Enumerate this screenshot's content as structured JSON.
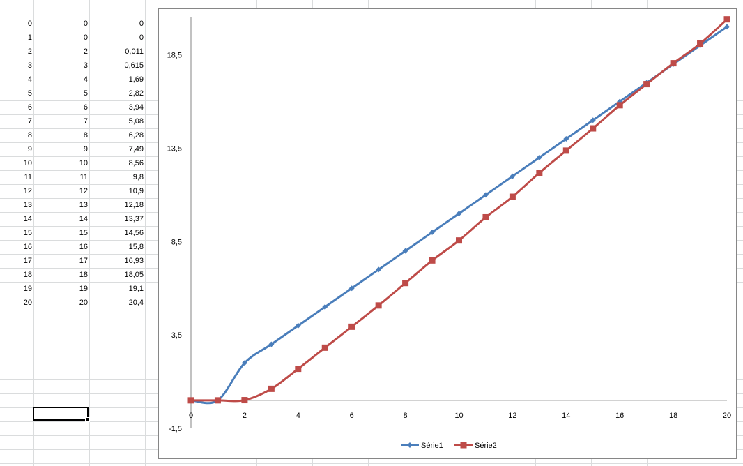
{
  "spreadsheet": {
    "rows": [
      {
        "a": "0",
        "b": "0",
        "c": "0"
      },
      {
        "a": "1",
        "b": "0",
        "c": "0"
      },
      {
        "a": "2",
        "b": "2",
        "c": "0,011"
      },
      {
        "a": "3",
        "b": "3",
        "c": "0,615"
      },
      {
        "a": "4",
        "b": "4",
        "c": "1,69"
      },
      {
        "a": "5",
        "b": "5",
        "c": "2,82"
      },
      {
        "a": "6",
        "b": "6",
        "c": "3,94"
      },
      {
        "a": "7",
        "b": "7",
        "c": "5,08"
      },
      {
        "a": "8",
        "b": "8",
        "c": "6,28"
      },
      {
        "a": "9",
        "b": "9",
        "c": "7,49"
      },
      {
        "a": "10",
        "b": "10",
        "c": "8,56"
      },
      {
        "a": "11",
        "b": "11",
        "c": "9,8"
      },
      {
        "a": "12",
        "b": "12",
        "c": "10,9"
      },
      {
        "a": "13",
        "b": "13",
        "c": "12,18"
      },
      {
        "a": "14",
        "b": "14",
        "c": "13,37"
      },
      {
        "a": "15",
        "b": "15",
        "c": "14,56"
      },
      {
        "a": "16",
        "b": "16",
        "c": "15,8"
      },
      {
        "a": "17",
        "b": "17",
        "c": "16,93"
      },
      {
        "a": "18",
        "b": "18",
        "c": "18,05"
      },
      {
        "a": "19",
        "b": "19",
        "c": "19,1"
      },
      {
        "a": "20",
        "b": "20",
        "c": "20,4"
      }
    ]
  },
  "chart_data": {
    "type": "line",
    "title": "",
    "xlabel": "",
    "ylabel": "",
    "x": [
      0,
      1,
      2,
      3,
      4,
      5,
      6,
      7,
      8,
      9,
      10,
      11,
      12,
      13,
      14,
      15,
      16,
      17,
      18,
      19,
      20
    ],
    "xlim": [
      0,
      20
    ],
    "ylim": [
      -1.5,
      20.5
    ],
    "x_ticks": [
      "0",
      "2",
      "4",
      "6",
      "8",
      "10",
      "12",
      "14",
      "16",
      "18",
      "20"
    ],
    "y_ticks": [
      "-1,5",
      "3,5",
      "8,5",
      "13,5",
      "18,5"
    ],
    "grid": false,
    "legend_position": "bottom",
    "smoothed": true,
    "series": [
      {
        "name": "Série1",
        "color": "#4a7ebb",
        "marker": "diamond",
        "values": [
          0,
          0,
          2,
          3,
          4,
          5,
          6,
          7,
          8,
          9,
          10,
          11,
          12,
          13,
          14,
          15,
          16,
          17,
          18,
          19,
          20
        ]
      },
      {
        "name": "Série2",
        "color": "#be4b48",
        "marker": "square",
        "values": [
          0,
          0,
          0.011,
          0.615,
          1.69,
          2.82,
          3.94,
          5.08,
          6.28,
          7.49,
          8.56,
          9.8,
          10.9,
          12.18,
          13.37,
          14.56,
          15.8,
          16.93,
          18.05,
          19.1,
          20.4
        ]
      }
    ]
  }
}
